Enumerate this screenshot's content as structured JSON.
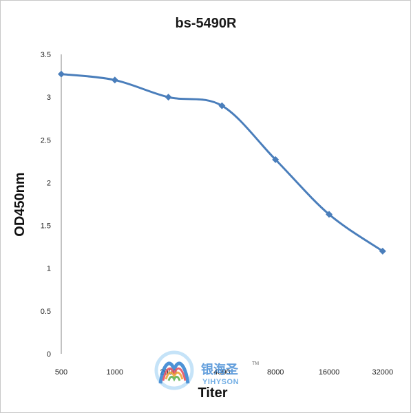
{
  "chart_data": {
    "type": "line",
    "title": "bs-5490R",
    "xlabel": "Titer",
    "ylabel": "OD450nm",
    "categories": [
      "500",
      "1000",
      "2000",
      "4000",
      "8000",
      "16000",
      "32000"
    ],
    "values": [
      3.27,
      3.2,
      3.0,
      2.9,
      2.27,
      1.63,
      1.2
    ],
    "ylim": [
      0,
      3.5
    ],
    "yticks": [
      "0",
      "0.5",
      "1",
      "1.5",
      "2",
      "2.5",
      "3",
      "3.5"
    ],
    "grid": false,
    "legend": "none",
    "series_color": "#4a7ebb",
    "marker": "diamond"
  },
  "watermark": {
    "cn_text": "银海圣",
    "en_text": "YIHYSON",
    "tm": "TM",
    "color_cn": "#4a8fd6",
    "color_en": "#5aa0e0"
  }
}
